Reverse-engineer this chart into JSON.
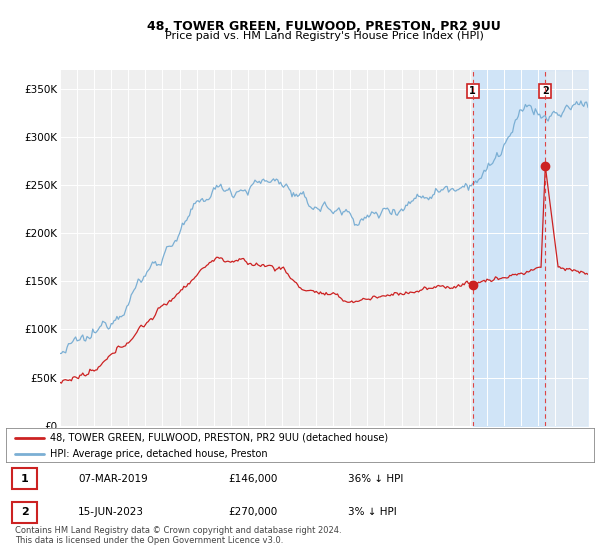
{
  "title": "48, TOWER GREEN, FULWOOD, PRESTON, PR2 9UU",
  "subtitle": "Price paid vs. HM Land Registry's House Price Index (HPI)",
  "ylim": [
    0,
    370000
  ],
  "yticks": [
    0,
    50000,
    100000,
    150000,
    200000,
    250000,
    300000,
    350000
  ],
  "ytick_labels": [
    "£0",
    "£50K",
    "£100K",
    "£150K",
    "£200K",
    "£250K",
    "£300K",
    "£350K"
  ],
  "hpi_color": "#7bafd4",
  "price_color": "#cc2222",
  "shade_color": "#d0e4f7",
  "hatch_color": "#c8d8e8",
  "legend_property": "48, TOWER GREEN, FULWOOD, PRESTON, PR2 9UU (detached house)",
  "legend_hpi": "HPI: Average price, detached house, Preston",
  "table_row1": [
    "1",
    "07-MAR-2019",
    "£146,000",
    "36% ↓ HPI"
  ],
  "table_row2": [
    "2",
    "15-JUN-2023",
    "£270,000",
    "3% ↓ HPI"
  ],
  "footnote": "Contains HM Land Registry data © Crown copyright and database right 2024.\nThis data is licensed under the Open Government Licence v3.0.",
  "background_color": "#ffffff",
  "plot_bg_color": "#efefef"
}
